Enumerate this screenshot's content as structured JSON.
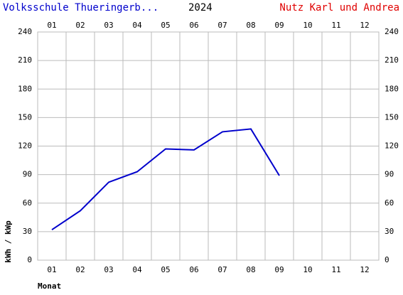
{
  "chart_data": {
    "type": "line",
    "title": "Volksschule Thueringerb...",
    "year": "2024",
    "owner": "Nutz Karl und Andrea",
    "ylabel": "kWh / kWp",
    "xlabel": "Monat",
    "categories": [
      "01",
      "02",
      "03",
      "04",
      "05",
      "06",
      "07",
      "08",
      "09",
      "10",
      "11",
      "12"
    ],
    "values": [
      32,
      52,
      82,
      93,
      117,
      116,
      135,
      138,
      89,
      null,
      null,
      null
    ],
    "color": "#0000cc",
    "ylim": [
      0,
      240
    ],
    "yticks": [
      0,
      30,
      60,
      90,
      120,
      150,
      180,
      210,
      240
    ],
    "grid": true
  }
}
